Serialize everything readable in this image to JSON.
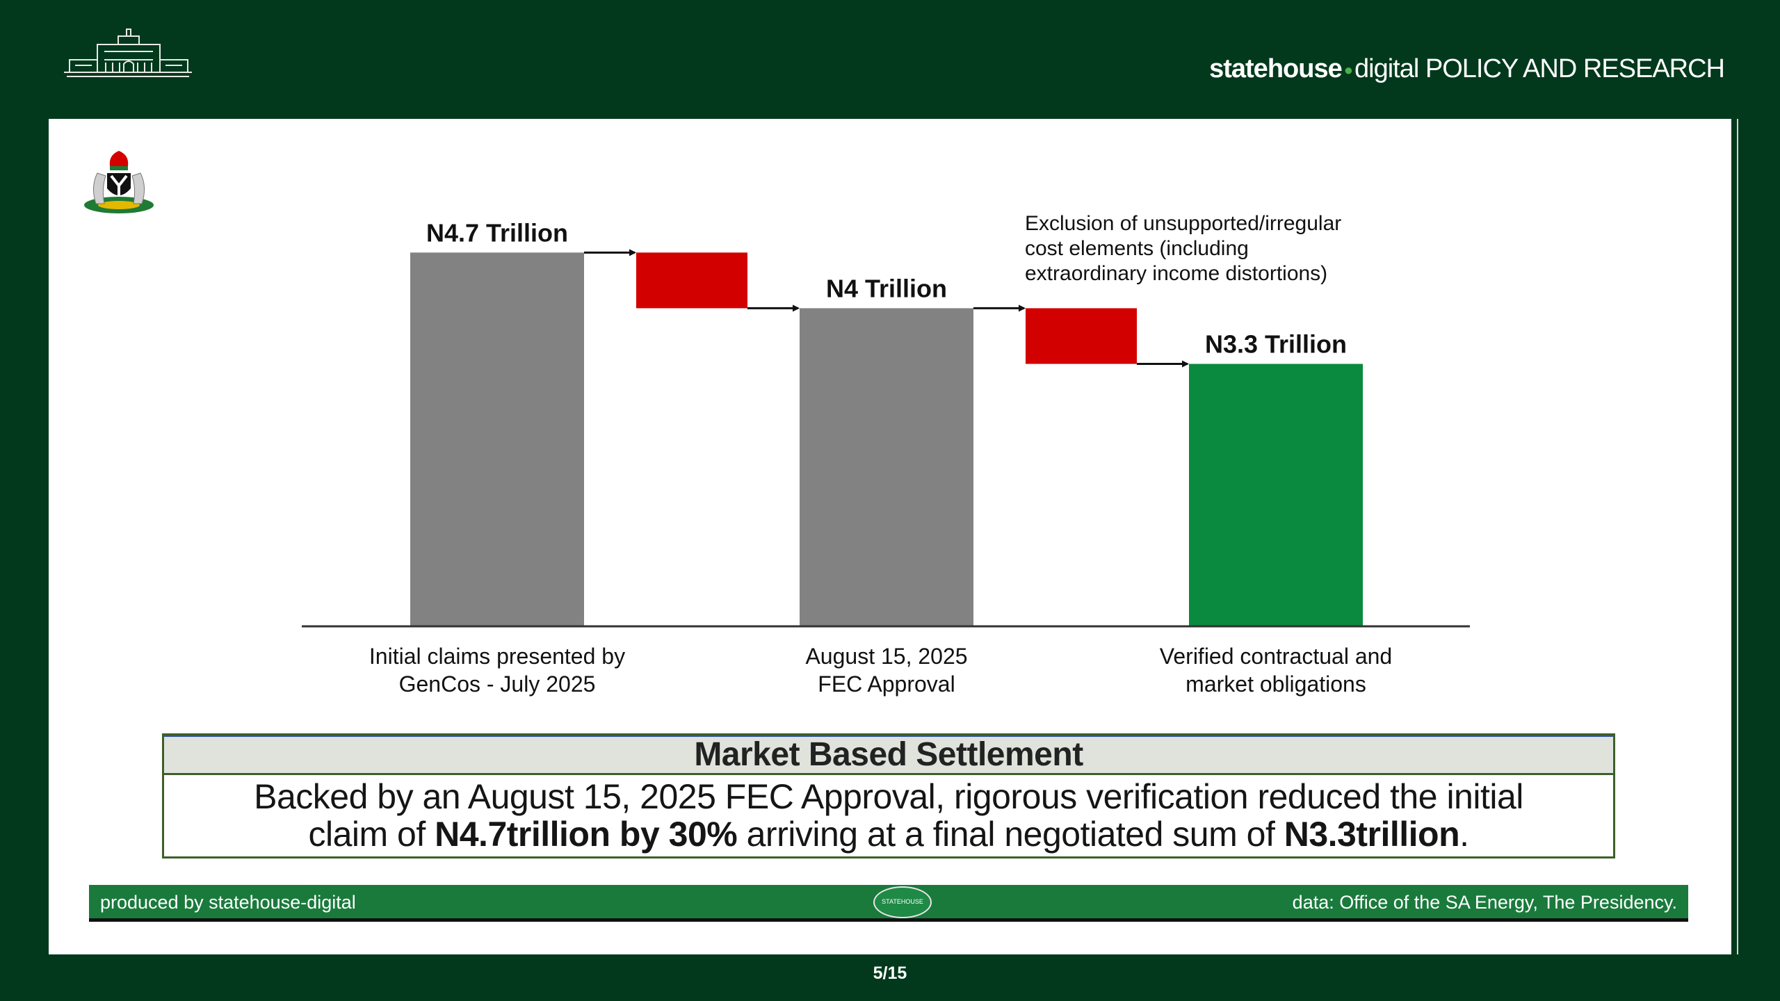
{
  "header": {
    "brand_bold": "statehouse",
    "brand_light": "digital",
    "brand_section": "POLICY AND RESEARCH"
  },
  "colors": {
    "background": "#02391c",
    "bar_gray": "#828282",
    "bar_red": "#d30000",
    "bar_green": "#0a8a3e",
    "footer_green": "#1a7a3c"
  },
  "chart_data": {
    "type": "bar",
    "subtype": "waterfall",
    "unit": "Trillion Naira",
    "baseline": 0,
    "ylim": [
      0,
      5.5
    ],
    "bars": [
      {
        "kind": "total",
        "value": 4.7,
        "label": "N4.7 Trillion",
        "category": [
          "Initial claims presented by",
          "GenCos - July 2025"
        ],
        "color": "#828282"
      },
      {
        "kind": "decrease",
        "from": 4.7,
        "to": 4.0,
        "color": "#d30000"
      },
      {
        "kind": "total",
        "value": 4.0,
        "label": "N4 Trillion",
        "category": [
          "August 15, 2025",
          "FEC Approval"
        ],
        "color": "#828282"
      },
      {
        "kind": "decrease",
        "from": 4.0,
        "to": 3.3,
        "color": "#d30000",
        "annotation": [
          "Exclusion of unsupported/irregular",
          "cost elements (including",
          "extraordinary income distortions)"
        ]
      },
      {
        "kind": "total",
        "value": 3.3,
        "label": "N3.3 Trillion",
        "category": [
          "Verified contractual and",
          "market obligations"
        ],
        "color": "#0a8a3e"
      }
    ]
  },
  "summary": {
    "title": "Market Based Settlement",
    "line1": "Backed by an August 15, 2025 FEC Approval, rigorous verification reduced the initial",
    "line2_a": "claim of ",
    "line2_b": "N4.7trillion by 30%",
    "line2_c": " arriving at a final negotiated sum of ",
    "line2_d": "N3.3trillion",
    "line2_e": "."
  },
  "footer": {
    "left": "produced by statehouse-digital",
    "logo_text": "STATEHOUSE",
    "right": "data: Office of the SA Energy, The Presidency."
  },
  "page": "5/15"
}
